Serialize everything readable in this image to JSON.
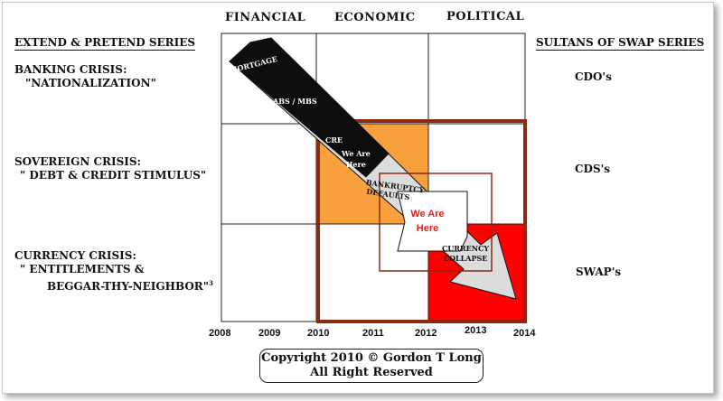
{
  "columns": [
    "FINANCIAL",
    "ECONOMIC",
    "POLITICAL"
  ],
  "left_series": {
    "title": "EXTEND & PRETEND SERIES",
    "rows": [
      {
        "line1": "BANKING CRISIS:",
        "line2": "\"NATIONALIZATION\""
      },
      {
        "line1": "SOVEREIGN CRISIS:",
        "line2": "\" DEBT & CREDIT STIMULUS\""
      },
      {
        "line1": "CURRENCY CRISIS:",
        "line2": "\" ENTITLEMENTS &",
        "line3": "BEGGAR-THY-NEIGHBOR\"",
        "sup": "3"
      }
    ]
  },
  "right_series": {
    "title": "SULTANS OF SWAP SERIES",
    "rows": [
      "CDO's",
      "CDS's",
      "SWAP's"
    ]
  },
  "years": [
    "2008",
    "2009",
    "2010",
    "2011",
    "2012",
    "2013",
    "2014"
  ],
  "arrow_labels": {
    "mortgage": "MORTGAGE",
    "abs_mbs": "ABS / MBS",
    "cre": "CRE",
    "bankrupt_line1": "BANKRUPTCY",
    "bankrupt_line2": "DEFAULTS",
    "currency_line1": "CURRENCY",
    "currency_line2": "COLLAPSE"
  },
  "we_are_here_dark": {
    "line1": "We Are",
    "line2": "Here"
  },
  "we_are_here_red": {
    "line1": "We Are",
    "line2": "Here"
  },
  "copyright": {
    "line1": "Copyright 2010 © Gordon T Long",
    "line2": "All Right Reserved"
  },
  "colors": {
    "orange": "#f7a03c",
    "red": "#ff0000",
    "border_brown": "#8b2a12",
    "arrow_dark": "#0d0d0d",
    "arrow_light": "#dcdcdc",
    "we_are_here_red_text": "#e02020"
  }
}
